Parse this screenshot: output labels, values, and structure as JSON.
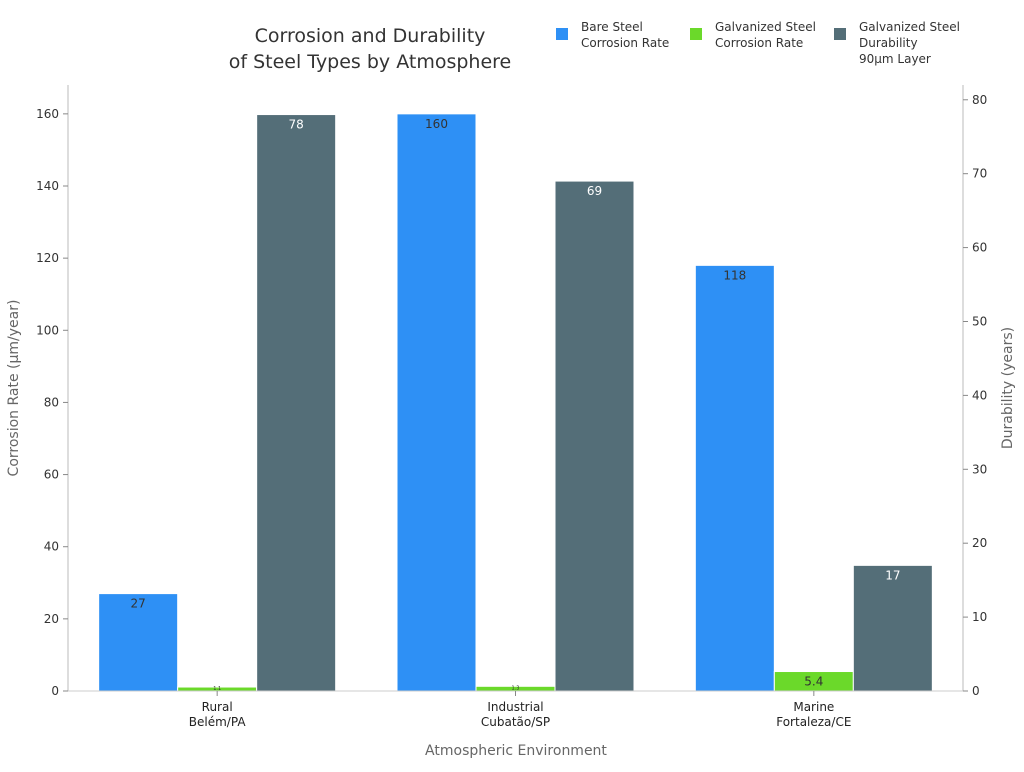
{
  "chart_data": {
    "type": "bar",
    "title": "Corrosion and Durability\nof Steel Types by Atmosphere",
    "xlabel": "Atmospheric Environment",
    "ylabel": "Corrosion Rate (µm/year)",
    "y2label": "Durability (years)",
    "categories": [
      "Rural\nBelém/PA",
      "Industrial\nCubatão/SP",
      "Marine\nFortaleza/CE"
    ],
    "ylim": [
      0,
      168
    ],
    "y2lim": [
      0,
      82
    ],
    "yticks": [
      0,
      20,
      40,
      60,
      80,
      100,
      120,
      140,
      160
    ],
    "y2ticks": [
      0,
      10,
      20,
      30,
      40,
      50,
      60,
      70,
      80
    ],
    "grid": false,
    "legend_placement": "top-right",
    "series": [
      {
        "name": "Bare Steel\nCorrosion Rate",
        "axis": "left",
        "color": "#2e90f5",
        "values": [
          27,
          160,
          118
        ],
        "labels": [
          "27",
          "160",
          "118"
        ],
        "label_color": "#333333"
      },
      {
        "name": "Galvanized Steel\nCorrosion Rate",
        "axis": "left",
        "color": "#6bd92a",
        "values": [
          1.1,
          1.3,
          5.4
        ],
        "labels": [
          "1.1",
          "1.3",
          "5.4"
        ],
        "label_color": "#333333"
      },
      {
        "name": "Galvanized Steel\nDurability\n90µm Layer",
        "axis": "right",
        "color": "#546e78",
        "values": [
          78,
          69,
          17
        ],
        "labels": [
          "78",
          "69",
          "17"
        ],
        "label_color": "#ffffff"
      }
    ]
  }
}
